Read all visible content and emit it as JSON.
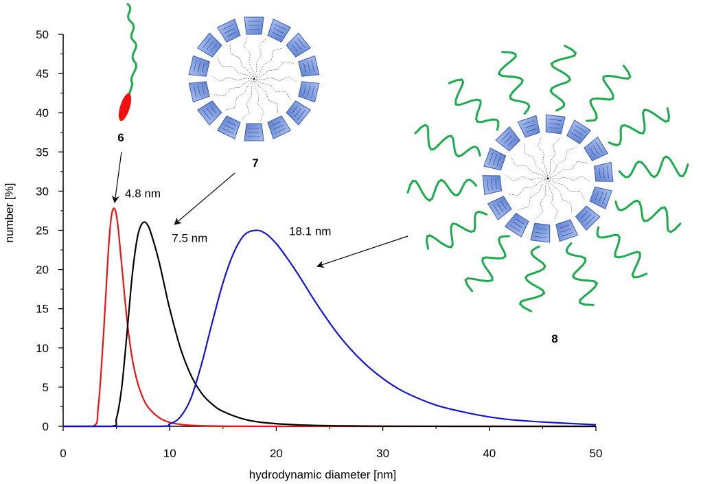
{
  "chart_data": {
    "type": "line",
    "xlabel": "hydrodynamic diameter [nm]",
    "ylabel": "number [%]",
    "xlim": [
      0,
      50
    ],
    "ylim": [
      0,
      50
    ],
    "x_ticks": [
      "0",
      "10",
      "20",
      "30",
      "40",
      "50"
    ],
    "y_ticks": [
      "0",
      "5",
      "10",
      "15",
      "20",
      "25",
      "30",
      "35",
      "40",
      "45",
      "50"
    ],
    "grid": false,
    "series": [
      {
        "color": "#ee1111",
        "peak_x": 4.8,
        "peak_y": 27.8,
        "x": [
          2.8,
          3.3,
          3.8,
          4.2,
          4.5,
          4.8,
          5.1,
          5.5,
          6.0,
          6.5,
          7.0,
          7.5,
          8.0,
          9.0,
          10.0,
          11.0,
          12.0,
          14.0,
          17.0,
          22.0,
          30.0,
          40.0,
          50.0
        ],
        "y": [
          0,
          2.5,
          12.0,
          21.5,
          26.5,
          27.8,
          26.0,
          20.5,
          13.5,
          8.5,
          5.5,
          3.6,
          2.4,
          1.1,
          0.5,
          0.25,
          0.12,
          0.04,
          0.01,
          0,
          0,
          0,
          0
        ]
      },
      {
        "color": "#000000",
        "peak_x": 7.5,
        "peak_y": 26.0,
        "x": [
          4.5,
          5.0,
          5.5,
          6.0,
          6.5,
          7.0,
          7.5,
          8.0,
          8.5,
          9.0,
          9.5,
          10.0,
          11.0,
          12.0,
          13.0,
          14.0,
          15.0,
          17.0,
          19.0,
          22.0,
          25.0,
          30.0,
          40.0,
          50.0
        ],
        "y": [
          0,
          1.0,
          5.0,
          12.0,
          19.5,
          24.3,
          26.0,
          25.5,
          23.5,
          21.0,
          18.0,
          15.0,
          10.0,
          6.5,
          4.2,
          2.8,
          1.9,
          0.9,
          0.45,
          0.18,
          0.08,
          0.02,
          0,
          0
        ]
      },
      {
        "color": "#1111dd",
        "peak_x": 18.1,
        "peak_y": 25.0,
        "x": [
          9.0,
          10.0,
          11.0,
          12.0,
          13.0,
          14.0,
          15.0,
          16.0,
          17.0,
          18.1,
          19.0,
          20.0,
          21.0,
          22.0,
          24.0,
          26.0,
          28.0,
          30.0,
          32.0,
          35.0,
          38.0,
          40.0,
          42.0,
          45.0,
          50.0
        ],
        "y": [
          0,
          0.3,
          1.2,
          3.6,
          8.0,
          13.3,
          18.3,
          22.1,
          24.4,
          25.0,
          24.6,
          23.3,
          21.5,
          19.5,
          15.2,
          11.4,
          8.4,
          6.1,
          4.4,
          2.7,
          1.7,
          1.2,
          0.85,
          0.55,
          0.2
        ]
      }
    ],
    "annotations": [
      {
        "text": "4.8 nm",
        "x": 5.8,
        "y": 29.2
      },
      {
        "text": "7.5 nm",
        "x": 10.2,
        "y": 23.5
      },
      {
        "text": "18.1 nm",
        "x": 21.2,
        "y": 24.4
      }
    ],
    "compound_labels": [
      "6",
      "7",
      "8"
    ]
  }
}
